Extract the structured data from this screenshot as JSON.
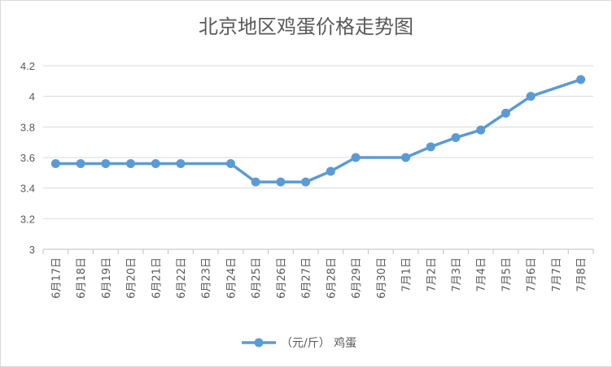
{
  "chart_data": {
    "type": "line",
    "title": "北京地区鸡蛋价格走势图",
    "categories": [
      "6月17日",
      "6月18日",
      "6月19日",
      "6月20日",
      "6月21日",
      "6月22日",
      "6月23日",
      "6月24日",
      "6月25日",
      "6月26日",
      "6月27日",
      "6月28日",
      "6月29日",
      "6月30日",
      "7月1日",
      "7月2日",
      "7月3日",
      "7月4日",
      "7月5日",
      "7月6日",
      "7月7日",
      "7月8日"
    ],
    "series": [
      {
        "name": "（元/斤） 鸡蛋",
        "color": "#5b9bd5",
        "values": [
          3.56,
          3.56,
          3.56,
          3.56,
          3.56,
          3.56,
          null,
          3.56,
          3.44,
          3.44,
          3.44,
          3.51,
          3.6,
          null,
          3.6,
          3.67,
          3.73,
          3.78,
          3.89,
          4.0,
          null,
          4.11
        ]
      }
    ],
    "yticks": [
      "3",
      "3.2",
      "3.4",
      "3.6",
      "3.8",
      "4",
      "4.2"
    ],
    "ylim": [
      3,
      4.2
    ],
    "grid": true,
    "legend_position": "bottom"
  }
}
